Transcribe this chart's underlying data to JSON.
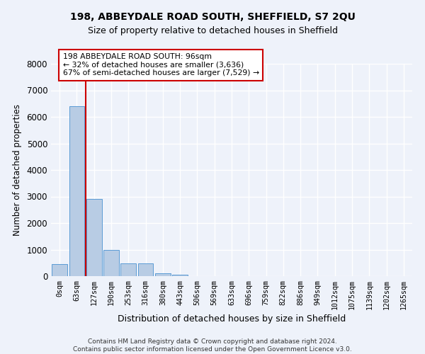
{
  "title": "198, ABBEYDALE ROAD SOUTH, SHEFFIELD, S7 2QU",
  "subtitle": "Size of property relative to detached houses in Sheffield",
  "xlabel": "Distribution of detached houses by size in Sheffield",
  "ylabel": "Number of detached properties",
  "bar_color": "#b8cce4",
  "bar_edge_color": "#5b9bd5",
  "categories": [
    "0sqm",
    "63sqm",
    "127sqm",
    "190sqm",
    "253sqm",
    "316sqm",
    "380sqm",
    "443sqm",
    "506sqm",
    "569sqm",
    "633sqm",
    "696sqm",
    "759sqm",
    "822sqm",
    "886sqm",
    "949sqm",
    "1012sqm",
    "1075sqm",
    "1139sqm",
    "1202sqm",
    "1265sqm"
  ],
  "values": [
    450,
    6400,
    2900,
    1000,
    470,
    470,
    120,
    55,
    10,
    0,
    0,
    0,
    0,
    0,
    0,
    0,
    0,
    0,
    0,
    0,
    0
  ],
  "ylim": [
    0,
    8000
  ],
  "yticks": [
    0,
    1000,
    2000,
    3000,
    4000,
    5000,
    6000,
    7000,
    8000
  ],
  "property_line_x": 1.5,
  "annotation_title": "198 ABBEYDALE ROAD SOUTH: 96sqm",
  "annotation_line1": "← 32% of detached houses are smaller (3,636)",
  "annotation_line2": "67% of semi-detached houses are larger (7,529) →",
  "annotation_box_color": "#ffffff",
  "annotation_box_edge_color": "#cc0000",
  "footer_line1": "Contains HM Land Registry data © Crown copyright and database right 2024.",
  "footer_line2": "Contains public sector information licensed under the Open Government Licence v3.0.",
  "background_color": "#eef2fa",
  "grid_color": "#ffffff"
}
